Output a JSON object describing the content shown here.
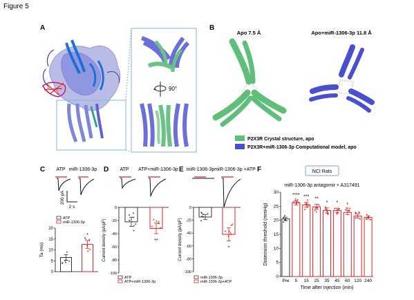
{
  "figure_title": "Figure 5",
  "panels": {
    "A": {
      "letter": "A",
      "rotation_label": "90°"
    },
    "B": {
      "letter": "B",
      "titles": [
        "Apo 7.5 Å",
        "Apo+miR-1306-3p 11.8 Å"
      ],
      "legend": [
        {
          "label": "P2X3R Crystal structure, apo",
          "color": "#5fbf7a"
        },
        {
          "label": "P2X3R+miR-1306-3p Computational model, apo",
          "color": "#4a4fd0"
        }
      ]
    },
    "C": {
      "letter": "C",
      "trace_labels": [
        "ATP",
        "miR-1306-3p"
      ],
      "scale_y": "200 pA",
      "scale_x": "2 s",
      "legend": [
        "ATP",
        "miR-1306-3p"
      ],
      "significance": "*"
    },
    "D": {
      "letter": "D",
      "trace_labels": [
        "ATP",
        "ATP+miR-1306-3p"
      ],
      "legend": [
        "ATP",
        "ATP+miR-1306-3p"
      ],
      "significance": "**"
    },
    "E": {
      "letter": "E",
      "trace_labels": [
        "miR-1306-3p",
        "miR-1306-3p +ATP"
      ],
      "legend": [
        "miR-1306-3p",
        "miR-1306-3p+ATP"
      ],
      "significance": "*"
    },
    "F": {
      "letter": "F",
      "badge": "NCI Rats",
      "title": "miR-1306-3p antagomir + A317491",
      "significance": [
        "",
        "****",
        "***",
        "**",
        "*",
        "*",
        "*",
        "",
        ""
      ]
    }
  },
  "chart_data": [
    {
      "type": "bar",
      "panel": "C",
      "categories": [
        "ATP",
        "miR-1306-3p"
      ],
      "values": [
        6.5,
        12.5
      ],
      "errors": [
        1.3,
        1.8
      ],
      "colors": [
        "#333333",
        "#e02020"
      ],
      "ylabel": "Ta (ms)",
      "ylim": [
        0,
        20
      ],
      "yticks": [
        0,
        5,
        10,
        15,
        20
      ]
    },
    {
      "type": "bar",
      "panel": "D",
      "categories": [
        "ATP",
        "ATP+miR-1306-3p"
      ],
      "values": [
        -22,
        -32
      ],
      "errors": [
        7,
        8
      ],
      "colors": [
        "#333333",
        "#e02020"
      ],
      "ylabel": "Current density (pA/pF)",
      "ylim": [
        -100,
        0
      ],
      "yticks": [
        0,
        -20,
        -40,
        -60,
        -80,
        -100
      ]
    },
    {
      "type": "bar",
      "panel": "E",
      "categories": [
        "miR-1306-3p",
        "miR-1306-3p+ATP"
      ],
      "values": [
        -15,
        -42
      ],
      "errors": [
        4,
        10
      ],
      "colors": [
        "#333333",
        "#e02020"
      ],
      "ylabel": "Current density (pA/pF)",
      "ylim": [
        -100,
        0
      ],
      "yticks": [
        0,
        -20,
        -40,
        -60,
        -80,
        -100
      ]
    },
    {
      "type": "bar",
      "panel": "F",
      "categories": [
        "Pre",
        "5",
        "15",
        "25",
        "35",
        "45",
        "60",
        "120",
        "240"
      ],
      "values": [
        20.5,
        26.2,
        25.5,
        24.8,
        23.5,
        23.5,
        22.8,
        21.5,
        21.0
      ],
      "errors": [
        0.6,
        0.8,
        0.9,
        0.9,
        0.9,
        0.8,
        0.8,
        0.7,
        0.6
      ],
      "colors": [
        "#333333",
        "#e02020",
        "#e02020",
        "#e02020",
        "#e02020",
        "#e02020",
        "#e02020",
        "#e02020",
        "#e02020"
      ],
      "xlabel": "Time after injection (min)",
      "ylabel": "Distension threshold (mmHg)",
      "ylim": [
        0,
        30
      ],
      "yticks": [
        0,
        5,
        10,
        15,
        20,
        25,
        30
      ]
    }
  ]
}
